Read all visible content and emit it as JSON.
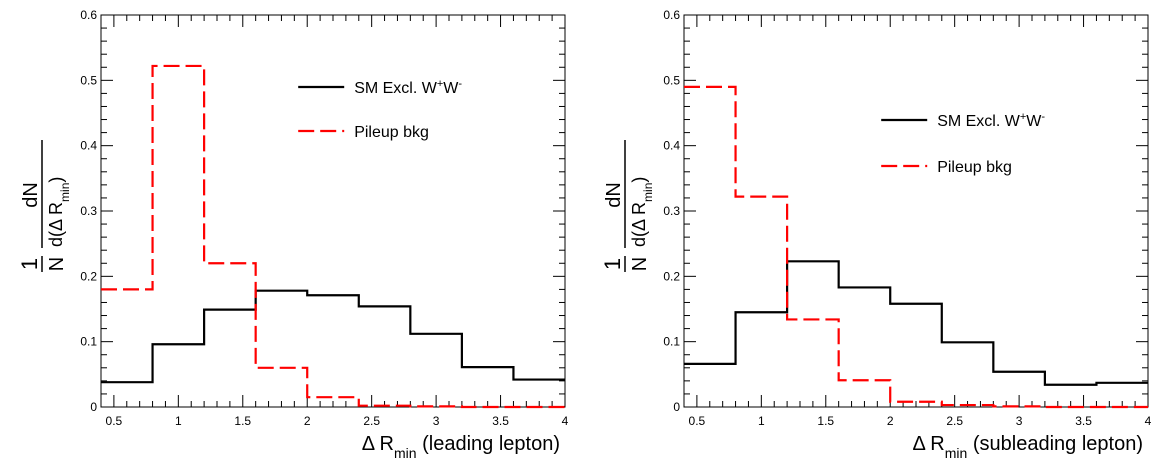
{
  "chart_data": [
    {
      "type": "step",
      "title": "",
      "xlabel_symbol": "Δ R",
      "xlabel_sub": "min",
      "xlabel_rest": "(leading lepton)",
      "ylabel": {
        "num": "1",
        "den": "N",
        "top": "dN",
        "bottom": "d(Δ R",
        "bottom_sub": "min",
        "bottom_close": ")"
      },
      "xlim": [
        0.4,
        4.0
      ],
      "ylim": [
        0,
        0.6
      ],
      "xticks": [
        "0.5",
        "1",
        "1.5",
        "2",
        "2.5",
        "3",
        "3.5",
        "4"
      ],
      "yticks": [
        "0",
        "0.1",
        "0.2",
        "0.3",
        "0.4",
        "0.5",
        "0.6"
      ],
      "bin_edges": [
        0.4,
        0.8,
        1.2,
        1.6,
        2.0,
        2.4,
        2.8,
        3.2,
        3.6,
        4.0
      ],
      "legend_position": "top-right",
      "series": [
        {
          "name": "SM Excl. W",
          "name_sup": "+",
          "name_mid": "W",
          "name_sup2": "-",
          "color": "#000000",
          "style": "solid",
          "values": [
            0.038,
            0.096,
            0.149,
            0.178,
            0.171,
            0.154,
            0.112,
            0.061,
            0.042
          ]
        },
        {
          "name": "Pileup bkg",
          "color": "#ff0000",
          "style": "dashed",
          "values": [
            0.18,
            0.522,
            0.22,
            0.06,
            0.015,
            0.002,
            0.001,
            0.0,
            0.0
          ]
        }
      ]
    },
    {
      "type": "step",
      "title": "",
      "xlabel_symbol": "Δ R",
      "xlabel_sub": "min",
      "xlabel_rest": "(subleading lepton)",
      "ylabel": {
        "num": "1",
        "den": "N",
        "top": "dN",
        "bottom": "d(Δ R",
        "bottom_sub": "min",
        "bottom_close": ")"
      },
      "xlim": [
        0.4,
        4.0
      ],
      "ylim": [
        0,
        0.6
      ],
      "xticks": [
        "0.5",
        "1",
        "1.5",
        "2",
        "2.5",
        "3",
        "3.5",
        "4"
      ],
      "yticks": [
        "0",
        "0.1",
        "0.2",
        "0.3",
        "0.4",
        "0.5",
        "0.6"
      ],
      "bin_edges": [
        0.4,
        0.8,
        1.2,
        1.6,
        2.0,
        2.4,
        2.8,
        3.2,
        3.6,
        4.0
      ],
      "legend_position": "top-right",
      "series": [
        {
          "name": "SM Excl. W",
          "name_sup": "+",
          "name_mid": "W",
          "name_sup2": "-",
          "color": "#000000",
          "style": "solid",
          "values": [
            0.066,
            0.145,
            0.223,
            0.183,
            0.158,
            0.099,
            0.054,
            0.034,
            0.037
          ]
        },
        {
          "name": "Pileup bkg",
          "color": "#ff0000",
          "style": "dashed",
          "values": [
            0.49,
            0.322,
            0.134,
            0.041,
            0.008,
            0.003,
            0.001,
            0.0,
            0.0
          ]
        }
      ]
    }
  ]
}
